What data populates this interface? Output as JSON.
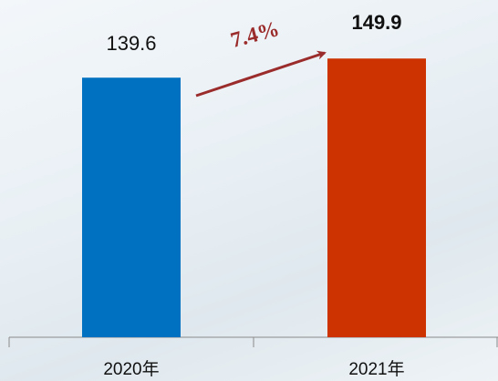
{
  "chart_data": {
    "type": "bar",
    "categories": [
      "2020年",
      "2021年"
    ],
    "values": [
      139.6,
      149.9
    ],
    "colors": [
      "#0070c0",
      "#cc3300"
    ],
    "label_bold": [
      false,
      true
    ],
    "annotation": "7.4%",
    "ylim": [
      0,
      150
    ]
  }
}
